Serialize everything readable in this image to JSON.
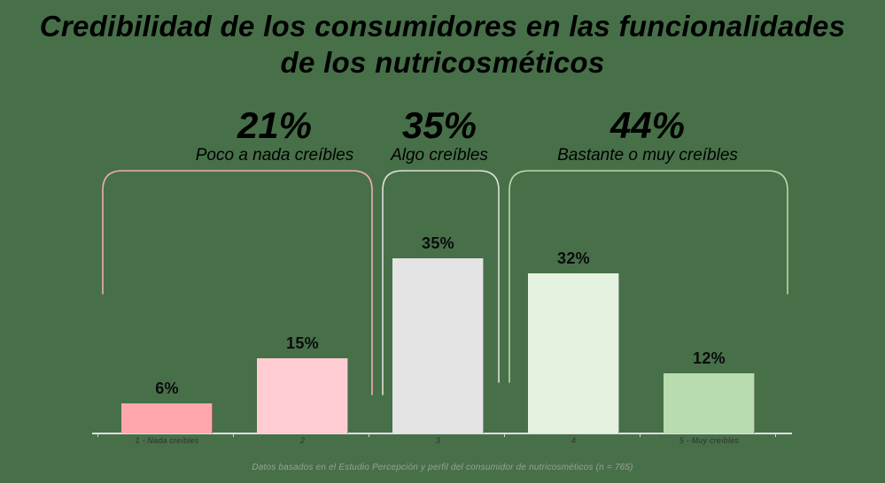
{
  "title": {
    "line1": "Credibilidad de los consumidores en las funcionalidades",
    "line2": "de los nutricosméticos"
  },
  "groups": [
    {
      "pct": "21%",
      "label": "Poco a nada creíbles",
      "color": "#f7abb3",
      "bracket_color": "#f2aab2"
    },
    {
      "pct": "35%",
      "label": "Algo creíbles",
      "color": "#cbcbcb",
      "bracket_color": "#dbe0d7"
    },
    {
      "pct": "44%",
      "label": "Bastante o muy creíbles",
      "color": "#abd09a",
      "bracket_color": "#b8d7a9"
    }
  ],
  "chart_data": {
    "type": "bar",
    "title": "Credibilidad de los consumidores en las funcionalidades de los nutricosméticos",
    "categories": [
      "1 - Nada creíbles",
      "2",
      "3",
      "4",
      "5 - Muy creíbles"
    ],
    "values": [
      6,
      15,
      35,
      32,
      12
    ],
    "value_labels": [
      "6%",
      "15%",
      "35%",
      "32%",
      "12%"
    ],
    "bar_colors": [
      "#ffa7ad",
      "#ffccd1",
      "#e4e4e4",
      "#e6f2e0",
      "#b9dcae"
    ],
    "xlabel": "",
    "ylabel": "",
    "ylim": [
      0,
      40
    ],
    "grid": false,
    "legend": false,
    "group_summaries": [
      {
        "value": "21%",
        "label": "Poco a nada creíbles",
        "categories": [
          "1 - Nada creíbles",
          "2"
        ]
      },
      {
        "value": "35%",
        "label": "Algo creíbles",
        "categories": [
          "3"
        ]
      },
      {
        "value": "44%",
        "label": "Bastante o muy creíbles",
        "categories": [
          "4",
          "5 - Muy creíbles"
        ]
      }
    ]
  },
  "footnote": "Datos basados en el Estudio Percepción y perfil del consumidor de nutricosméticos (n = 765)",
  "colors": {
    "background": "#477049",
    "axis": "#dedede",
    "title_text": "#000000"
  }
}
